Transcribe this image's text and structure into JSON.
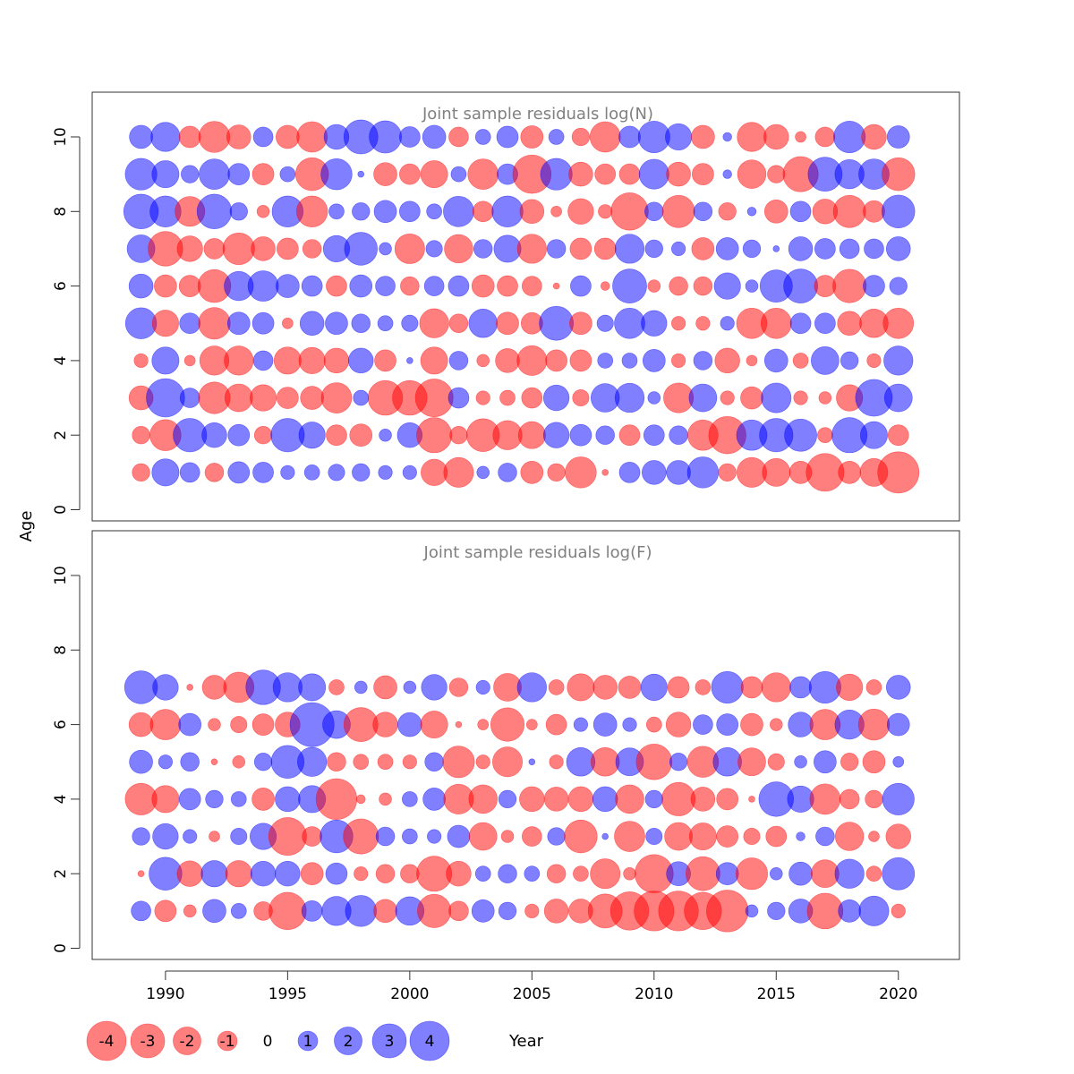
{
  "chart_data": {
    "type": "scatter",
    "subtype": "bubble",
    "xlabel": "Year",
    "ylabel": "Age",
    "xlim": [
      1987,
      2022.5
    ],
    "x_ticks": [
      1990,
      1995,
      2000,
      2005,
      2010,
      2015,
      2020
    ],
    "y_ticks": [
      0,
      2,
      4,
      6,
      8,
      10
    ],
    "ylim": [
      -0.3,
      11.2
    ],
    "colors": {
      "positive": "#0000ff",
      "negative": "#ff0000",
      "title": "#808080",
      "axis": "#333333"
    },
    "fill_opacity": 0.5,
    "legend": {
      "placement": "bottom-left",
      "items": [
        {
          "label": "-4",
          "value": -4
        },
        {
          "label": "-3",
          "value": -3
        },
        {
          "label": "-2",
          "value": -2
        },
        {
          "label": "-1",
          "value": -1
        },
        {
          "label": "0",
          "value": 0
        },
        {
          "label": "1",
          "value": 1
        },
        {
          "label": "2",
          "value": 2
        },
        {
          "label": "3",
          "value": 3
        },
        {
          "label": "4",
          "value": 4
        }
      ]
    },
    "panels": [
      {
        "title": "Joint sample residuals log(N)",
        "years": [
          1989,
          1990,
          1991,
          1992,
          1993,
          1994,
          1995,
          1996,
          1997,
          1998,
          1999,
          2000,
          2001,
          2002,
          2003,
          2004,
          2005,
          2006,
          2007,
          2008,
          2009,
          2010,
          2011,
          2012,
          2013,
          2014,
          2015,
          2016,
          2017,
          2018,
          2019,
          2020
        ],
        "ages": [
          1,
          2,
          3,
          4,
          5,
          6,
          7,
          8,
          9,
          10
        ],
        "residuals": [
          [
            -0.8,
            1.9,
            1.0,
            -0.9,
            1.2,
            1.1,
            0.5,
            0.6,
            0.7,
            0.8,
            0.5,
            0.5,
            -1.8,
            -2.3,
            0.4,
            0.9,
            -1.3,
            -0.8,
            -2.5,
            -0.1,
            1.1,
            1.5,
            1.5,
            2.5,
            -0.8,
            -2.3,
            -2.0,
            -1.3,
            -3.7,
            -1.3,
            -2.0,
            -4.4
          ],
          [
            -0.8,
            -2.5,
            2.9,
            1.6,
            1.2,
            -0.8,
            2.9,
            1.8,
            -1.1,
            -1.3,
            0.4,
            1.6,
            -3.2,
            -0.8,
            -2.8,
            -2.2,
            -1.9,
            1.7,
            1.2,
            0.9,
            -1.1,
            1.1,
            0.9,
            -2.4,
            -3.6,
            2.4,
            2.9,
            2.7,
            -0.6,
            3.2,
            1.9,
            -1.1
          ],
          [
            -1.5,
            3.8,
            1.0,
            -2.6,
            -2.0,
            -1.8,
            -1.2,
            -1.4,
            -2.4,
            0.6,
            -3.1,
            -3.1,
            -3.7,
            1.1,
            -0.5,
            -0.6,
            -1.1,
            1.7,
            -0.7,
            2.1,
            2.2,
            0.4,
            -2.3,
            2.0,
            -0.5,
            -1.3,
            2.3,
            -0.5,
            -0.4,
            -1.8,
            3.5,
            2.0
          ],
          [
            -0.5,
            1.9,
            -0.3,
            -2.2,
            -2.2,
            1.0,
            -1.9,
            -1.8,
            -1.6,
            1.6,
            -1.2,
            0.1,
            -1.9,
            0.9,
            -0.4,
            -1.5,
            -2.3,
            -1.2,
            -1.2,
            0.6,
            0.6,
            1.3,
            -0.5,
            0.9,
            -1.6,
            -0.3,
            1.4,
            -0.6,
            2.0,
            0.8,
            -0.5,
            2.2
          ],
          [
            2.5,
            -1.8,
            1.1,
            -2.6,
            1.3,
            1.2,
            -0.3,
            1.5,
            1.3,
            0.9,
            0.6,
            0.7,
            -2.2,
            -0.9,
            2.1,
            -1.3,
            -1.2,
            3.0,
            -1.3,
            0.7,
            2.4,
            1.7,
            -0.5,
            -0.5,
            0.5,
            -2.4,
            -2.4,
            1.1,
            1.1,
            -1.5,
            -2.1,
            -2.4
          ],
          [
            1.5,
            -1.3,
            -1.2,
            -2.8,
            2.2,
            2.4,
            1.4,
            1.1,
            -1.1,
            1.3,
            1.0,
            -0.9,
            1.0,
            1.1,
            -1.3,
            -1.1,
            -1.0,
            -0.1,
            1.1,
            -0.2,
            3.0,
            -0.4,
            -0.9,
            -0.9,
            1.8,
            0.4,
            2.7,
            3.0,
            -1.2,
            -2.9,
            1.2,
            0.8
          ],
          [
            2.0,
            -3.1,
            -1.7,
            -1.1,
            -2.6,
            -1.5,
            -1.2,
            -0.9,
            1.8,
            2.8,
            0.4,
            -2.3,
            0.7,
            -2.1,
            0.9,
            1.9,
            -2.2,
            0.9,
            -1.2,
            -1.2,
            2.2,
            0.8,
            0.5,
            -1.3,
            1.3,
            0.8,
            0.1,
            1.5,
            1.1,
            1.0,
            1.0,
            1.5
          ],
          [
            3.1,
            2.5,
            -2.3,
            3.1,
            0.8,
            -0.4,
            2.5,
            -2.5,
            0.6,
            0.8,
            1.3,
            1.1,
            0.6,
            2.4,
            -1.1,
            2.5,
            -1.5,
            -0.3,
            -1.7,
            -0.5,
            -3.6,
            0.9,
            -2.7,
            0.9,
            -0.8,
            0.2,
            -1.4,
            1.1,
            -1.6,
            -2.7,
            -1.2,
            2.8
          ],
          [
            2.6,
            1.9,
            0.8,
            2.4,
            1.2,
            -1.2,
            0.6,
            -2.8,
            2.5,
            0.1,
            -1.4,
            -1.1,
            -1.9,
            0.6,
            -2.4,
            1.1,
            -3.8,
            2.6,
            -1.5,
            -1.1,
            -1.1,
            2.3,
            -1.5,
            -1.2,
            0.2,
            -2.1,
            -0.8,
            -3.2,
            3.0,
            2.2,
            2.4,
            -2.8
          ],
          [
            1.4,
            2.2,
            -1.2,
            -2.5,
            -1.5,
            1.0,
            -1.4,
            -2.4,
            1.6,
            3.0,
            2.7,
            1.1,
            1.4,
            -1.0,
            0.6,
            1.2,
            -1.3,
            0.6,
            -0.8,
            -2.4,
            1.2,
            2.6,
            1.8,
            -1.4,
            0.2,
            -2.2,
            -1.6,
            -0.3,
            -1.0,
            2.6,
            -1.6,
            1.3
          ]
        ]
      },
      {
        "title": "Joint sample residuals log(F)",
        "years": [
          1989,
          1990,
          1991,
          1992,
          1993,
          1994,
          1995,
          1996,
          1997,
          1998,
          1999,
          2000,
          2001,
          2002,
          2003,
          2004,
          2005,
          2006,
          2007,
          2008,
          2009,
          2010,
          2011,
          2012,
          2013,
          2014,
          2015,
          2016,
          2017,
          2018,
          2019,
          2020
        ],
        "ages": [
          1,
          2,
          3,
          4,
          5,
          6,
          7
        ],
        "residuals": [
          [
            1.0,
            -1.2,
            -0.4,
            1.4,
            0.6,
            -0.9,
            -3.6,
            1.1,
            2.2,
            2.5,
            -1.4,
            2.1,
            -2.9,
            -1.0,
            1.3,
            0.8,
            -0.5,
            -1.5,
            -1.5,
            -3.0,
            -3.8,
            -4.1,
            -4.1,
            -3.6,
            -4.5,
            0.4,
            0.8,
            1.5,
            -3.3,
            1.3,
            2.3,
            -0.5
          ],
          [
            -0.1,
            2.8,
            -1.7,
            1.8,
            -1.8,
            1.6,
            1.6,
            -1.3,
            1.2,
            -0.5,
            -0.9,
            -0.9,
            -3.2,
            -1.6,
            0.6,
            0.9,
            0.6,
            -0.9,
            -0.6,
            -2.3,
            -0.4,
            -3.8,
            1.5,
            -3.0,
            1.3,
            -2.6,
            0.4,
            1.4,
            -2.0,
            2.2,
            -0.6,
            2.7
          ],
          [
            0.8,
            1.7,
            0.5,
            -0.3,
            0.7,
            1.8,
            -3.7,
            -1.0,
            2.8,
            -3.2,
            0.9,
            0.6,
            0.5,
            1.3,
            -2.0,
            -0.4,
            -1.0,
            0.8,
            -2.8,
            0.1,
            -2.4,
            0.7,
            -2.0,
            -1.9,
            -1.2,
            -0.7,
            -1.1,
            0.2,
            0.9,
            -2.1,
            -0.3,
            -1.6
          ],
          [
            -2.6,
            -1.9,
            1.2,
            0.8,
            0.6,
            -1.3,
            1.6,
            1.9,
            -4.3,
            -0.2,
            -0.4,
            0.6,
            1.3,
            -2.3,
            -2.1,
            0.8,
            -1.6,
            -1.5,
            -1.6,
            1.6,
            -2.1,
            0.8,
            -2.9,
            -1.5,
            -1.2,
            -0.1,
            3.1,
            1.8,
            -2.4,
            -1.0,
            -0.8,
            2.6
          ],
          [
            1.4,
            0.5,
            0.9,
            -0.1,
            -0.4,
            0.8,
            2.8,
            2.2,
            -0.9,
            -0.6,
            -0.6,
            -0.5,
            0.9,
            -2.6,
            -0.5,
            -2.3,
            0.1,
            -0.5,
            2.1,
            -2.1,
            2.0,
            -3.3,
            0.8,
            -2.5,
            2.1,
            -2.0,
            -0.7,
            0.4,
            1.3,
            -0.8,
            -1.3,
            0.3
          ],
          [
            -1.5,
            -2.4,
            1.3,
            -0.4,
            -0.7,
            -1.2,
            -1.6,
            5.0,
            2.0,
            -3.0,
            -1.6,
            1.5,
            -1.9,
            -0.1,
            -0.3,
            -2.9,
            -0.3,
            -1.1,
            0.5,
            1.4,
            0.5,
            -0.6,
            -1.6,
            1.0,
            1.2,
            -1.3,
            -0.4,
            1.6,
            -2.4,
            2.2,
            -2.5,
            1.3
          ],
          [
            2.8,
            1.7,
            -0.1,
            -1.5,
            -2.4,
            3.1,
            2.2,
            1.9,
            -0.6,
            0.4,
            -1.4,
            0.4,
            1.7,
            -0.9,
            0.5,
            -2.0,
            2.2,
            -0.6,
            -1.9,
            -1.5,
            -1.3,
            1.8,
            -1.2,
            -0.6,
            2.6,
            -1.2,
            -2.2,
            1.2,
            2.6,
            -1.8,
            -0.6,
            1.5
          ]
        ]
      }
    ]
  }
}
